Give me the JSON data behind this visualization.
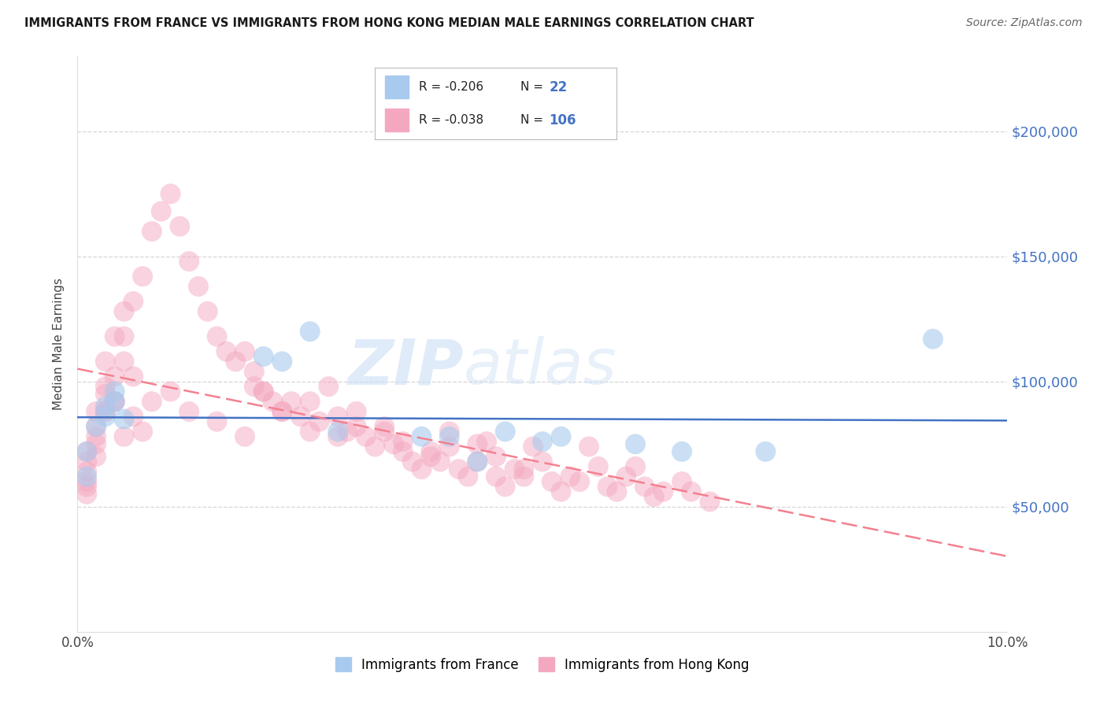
{
  "title": "IMMIGRANTS FROM FRANCE VS IMMIGRANTS FROM HONG KONG MEDIAN MALE EARNINGS CORRELATION CHART",
  "source": "Source: ZipAtlas.com",
  "ylabel": "Median Male Earnings",
  "xlim": [
    0.0,
    0.1
  ],
  "ylim": [
    0,
    230000
  ],
  "yticks": [
    50000,
    100000,
    150000,
    200000
  ],
  "ytick_labels": [
    "$50,000",
    "$100,000",
    "$150,000",
    "$200,000"
  ],
  "xticks": [
    0.0,
    0.02,
    0.04,
    0.06,
    0.08,
    0.1
  ],
  "xtick_labels": [
    "0.0%",
    "",
    "",
    "",
    "",
    "10.0%"
  ],
  "legend_france": "Immigrants from France",
  "legend_hk": "Immigrants from Hong Kong",
  "R_france": -0.206,
  "N_france": 22,
  "R_hk": -0.038,
  "N_hk": 106,
  "color_france": "#a8caee",
  "color_hk": "#f4a8c0",
  "line_color_france": "#4472c4",
  "line_color_hk": "#f48090",
  "background_color": "#ffffff",
  "france_x": [
    0.001,
    0.001,
    0.002,
    0.003,
    0.003,
    0.004,
    0.004,
    0.005,
    0.02,
    0.022,
    0.025,
    0.028,
    0.037,
    0.04,
    0.043,
    0.046,
    0.05,
    0.052,
    0.06,
    0.065,
    0.074,
    0.092
  ],
  "france_y": [
    72000,
    62000,
    82000,
    86000,
    90000,
    96000,
    92000,
    85000,
    110000,
    108000,
    120000,
    80000,
    78000,
    78000,
    68000,
    80000,
    76000,
    78000,
    75000,
    72000,
    72000,
    117000
  ],
  "hk_x": [
    0.001,
    0.001,
    0.001,
    0.001,
    0.002,
    0.002,
    0.002,
    0.002,
    0.003,
    0.003,
    0.003,
    0.004,
    0.004,
    0.004,
    0.005,
    0.005,
    0.005,
    0.006,
    0.006,
    0.007,
    0.008,
    0.009,
    0.01,
    0.011,
    0.012,
    0.013,
    0.014,
    0.015,
    0.016,
    0.017,
    0.018,
    0.019,
    0.019,
    0.02,
    0.021,
    0.022,
    0.023,
    0.024,
    0.025,
    0.026,
    0.027,
    0.028,
    0.029,
    0.03,
    0.031,
    0.032,
    0.033,
    0.034,
    0.035,
    0.036,
    0.037,
    0.038,
    0.039,
    0.04,
    0.041,
    0.042,
    0.043,
    0.044,
    0.045,
    0.046,
    0.047,
    0.048,
    0.049,
    0.05,
    0.051,
    0.052,
    0.053,
    0.054,
    0.055,
    0.056,
    0.057,
    0.058,
    0.059,
    0.06,
    0.061,
    0.062,
    0.063,
    0.065,
    0.066,
    0.068,
    0.001,
    0.001,
    0.002,
    0.003,
    0.003,
    0.004,
    0.005,
    0.006,
    0.007,
    0.008,
    0.01,
    0.012,
    0.015,
    0.018,
    0.02,
    0.022,
    0.025,
    0.028,
    0.03,
    0.033,
    0.035,
    0.038,
    0.04,
    0.043,
    0.045,
    0.048
  ],
  "hk_y": [
    72000,
    60000,
    58000,
    55000,
    88000,
    82000,
    75000,
    70000,
    108000,
    95000,
    88000,
    118000,
    102000,
    92000,
    128000,
    118000,
    108000,
    132000,
    102000,
    142000,
    160000,
    168000,
    175000,
    162000,
    148000,
    138000,
    128000,
    118000,
    112000,
    108000,
    112000,
    104000,
    98000,
    96000,
    92000,
    88000,
    92000,
    86000,
    92000,
    84000,
    98000,
    86000,
    80000,
    82000,
    78000,
    74000,
    80000,
    75000,
    72000,
    68000,
    65000,
    72000,
    68000,
    74000,
    65000,
    62000,
    68000,
    76000,
    62000,
    58000,
    65000,
    62000,
    74000,
    68000,
    60000,
    56000,
    62000,
    60000,
    74000,
    66000,
    58000,
    56000,
    62000,
    66000,
    58000,
    54000,
    56000,
    60000,
    56000,
    52000,
    68000,
    64000,
    78000,
    98000,
    88000,
    92000,
    78000,
    86000,
    80000,
    92000,
    96000,
    88000,
    84000,
    78000,
    96000,
    88000,
    80000,
    78000,
    88000,
    82000,
    76000,
    70000,
    80000,
    75000,
    70000,
    65000
  ]
}
